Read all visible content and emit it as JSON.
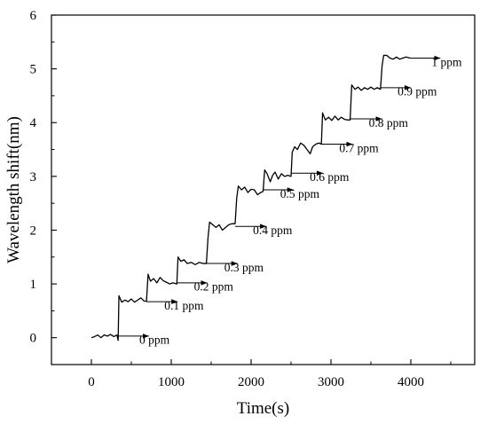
{
  "chart_data": {
    "type": "line",
    "title": "",
    "xlabel": "Time(s)",
    "ylabel": "Wavelength shift(nm)",
    "xlim": [
      -500,
      4800
    ],
    "ylim": [
      -0.5,
      6
    ],
    "x_ticks": [
      0,
      1000,
      2000,
      3000,
      4000
    ],
    "y_ticks": [
      0,
      1,
      2,
      3,
      4,
      5,
      6
    ],
    "x_tick_labels": [
      "0",
      "1000",
      "2000",
      "3000",
      "4000"
    ],
    "y_tick_labels": [
      "0",
      "1",
      "2",
      "3",
      "4",
      "5",
      "6"
    ],
    "grid": false,
    "legend": "none",
    "line_color": "#000000",
    "series": [
      {
        "values": [
          [
            0,
            0.0
          ],
          [
            40,
            0.02
          ],
          [
            80,
            0.05
          ],
          [
            120,
            0.0
          ],
          [
            160,
            0.05
          ],
          [
            200,
            0.03
          ],
          [
            240,
            0.06
          ],
          [
            280,
            0.02
          ],
          [
            320,
            0.05
          ],
          [
            335,
            -0.05
          ],
          [
            345,
            0.78
          ],
          [
            380,
            0.66
          ],
          [
            420,
            0.7
          ],
          [
            460,
            0.67
          ],
          [
            500,
            0.72
          ],
          [
            540,
            0.66
          ],
          [
            580,
            0.7
          ],
          [
            620,
            0.74
          ],
          [
            660,
            0.68
          ],
          [
            690,
            0.68
          ],
          [
            710,
            1.18
          ],
          [
            740,
            1.05
          ],
          [
            780,
            1.1
          ],
          [
            820,
            1.02
          ],
          [
            860,
            1.12
          ],
          [
            900,
            1.06
          ],
          [
            940,
            1.03
          ],
          [
            980,
            1.0
          ],
          [
            1020,
            1.02
          ],
          [
            1070,
            1.0
          ],
          [
            1085,
            1.5
          ],
          [
            1120,
            1.42
          ],
          [
            1160,
            1.45
          ],
          [
            1200,
            1.38
          ],
          [
            1250,
            1.4
          ],
          [
            1300,
            1.36
          ],
          [
            1350,
            1.4
          ],
          [
            1400,
            1.38
          ],
          [
            1440,
            1.38
          ],
          [
            1460,
            1.85
          ],
          [
            1480,
            2.15
          ],
          [
            1520,
            2.1
          ],
          [
            1560,
            2.05
          ],
          [
            1600,
            2.1
          ],
          [
            1640,
            2.0
          ],
          [
            1680,
            2.05
          ],
          [
            1720,
            2.1
          ],
          [
            1760,
            2.12
          ],
          [
            1800,
            2.12
          ],
          [
            1820,
            2.6
          ],
          [
            1840,
            2.82
          ],
          [
            1880,
            2.75
          ],
          [
            1920,
            2.8
          ],
          [
            1960,
            2.7
          ],
          [
            2000,
            2.76
          ],
          [
            2040,
            2.75
          ],
          [
            2080,
            2.66
          ],
          [
            2120,
            2.7
          ],
          [
            2150,
            2.72
          ],
          [
            2170,
            3.12
          ],
          [
            2200,
            3.05
          ],
          [
            2240,
            2.9
          ],
          [
            2270,
            3.02
          ],
          [
            2300,
            3.08
          ],
          [
            2340,
            2.95
          ],
          [
            2380,
            3.05
          ],
          [
            2420,
            3.0
          ],
          [
            2460,
            3.02
          ],
          [
            2500,
            3.0
          ],
          [
            2515,
            3.45
          ],
          [
            2545,
            3.55
          ],
          [
            2580,
            3.5
          ],
          [
            2620,
            3.62
          ],
          [
            2660,
            3.58
          ],
          [
            2700,
            3.5
          ],
          [
            2740,
            3.42
          ],
          [
            2770,
            3.55
          ],
          [
            2810,
            3.6
          ],
          [
            2850,
            3.62
          ],
          [
            2880,
            3.6
          ],
          [
            2895,
            4.18
          ],
          [
            2930,
            4.05
          ],
          [
            2970,
            4.1
          ],
          [
            3010,
            4.04
          ],
          [
            3050,
            4.12
          ],
          [
            3090,
            4.05
          ],
          [
            3130,
            4.1
          ],
          [
            3170,
            4.06
          ],
          [
            3210,
            4.05
          ],
          [
            3240,
            4.05
          ],
          [
            3260,
            4.7
          ],
          [
            3300,
            4.62
          ],
          [
            3340,
            4.66
          ],
          [
            3380,
            4.6
          ],
          [
            3420,
            4.65
          ],
          [
            3460,
            4.62
          ],
          [
            3500,
            4.66
          ],
          [
            3540,
            4.62
          ],
          [
            3580,
            4.65
          ],
          [
            3620,
            4.62
          ],
          [
            3640,
            5.05
          ],
          [
            3660,
            5.25
          ],
          [
            3700,
            5.25
          ],
          [
            3740,
            5.2
          ],
          [
            3780,
            5.18
          ],
          [
            3820,
            5.22
          ],
          [
            3860,
            5.18
          ],
          [
            3900,
            5.2
          ],
          [
            3940,
            5.22
          ],
          [
            3990,
            5.2
          ]
        ]
      }
    ],
    "annotations": [
      {
        "text": "0 ppm",
        "arrow_x": [
          340,
          720
        ],
        "arrow_y": 0.03,
        "text_x": 790,
        "text_y": -0.05
      },
      {
        "text": "0.1 ppm",
        "arrow_x": [
          690,
          1080
        ],
        "arrow_y": 0.67,
        "text_x": 1160,
        "text_y": 0.59
      },
      {
        "text": "0.2 ppm",
        "arrow_x": [
          1070,
          1450
        ],
        "arrow_y": 1.02,
        "text_x": 1530,
        "text_y": 0.94
      },
      {
        "text": "0.3 ppm",
        "arrow_x": [
          1440,
          1830
        ],
        "arrow_y": 1.38,
        "text_x": 1910,
        "text_y": 1.3
      },
      {
        "text": "0.4 ppm",
        "arrow_x": [
          1800,
          2190
        ],
        "arrow_y": 2.07,
        "text_x": 2270,
        "text_y": 1.99
      },
      {
        "text": "0.5 ppm",
        "arrow_x": [
          2150,
          2530
        ],
        "arrow_y": 2.75,
        "text_x": 2610,
        "text_y": 2.67
      },
      {
        "text": "0.6 ppm",
        "arrow_x": [
          2500,
          2900
        ],
        "arrow_y": 3.06,
        "text_x": 2980,
        "text_y": 2.98
      },
      {
        "text": "0.7 ppm",
        "arrow_x": [
          2880,
          3270
        ],
        "arrow_y": 3.6,
        "text_x": 3350,
        "text_y": 3.52
      },
      {
        "text": "0.8 ppm",
        "arrow_x": [
          3240,
          3640
        ],
        "arrow_y": 4.07,
        "text_x": 3720,
        "text_y": 3.99
      },
      {
        "text": "0.9 ppm",
        "arrow_x": [
          3620,
          4000
        ],
        "arrow_y": 4.65,
        "text_x": 4080,
        "text_y": 4.57
      },
      {
        "text": "1 ppm",
        "arrow_x": [
          3990,
          4370
        ],
        "arrow_y": 5.2,
        "text_x": 4450,
        "text_y": 5.12
      }
    ]
  }
}
